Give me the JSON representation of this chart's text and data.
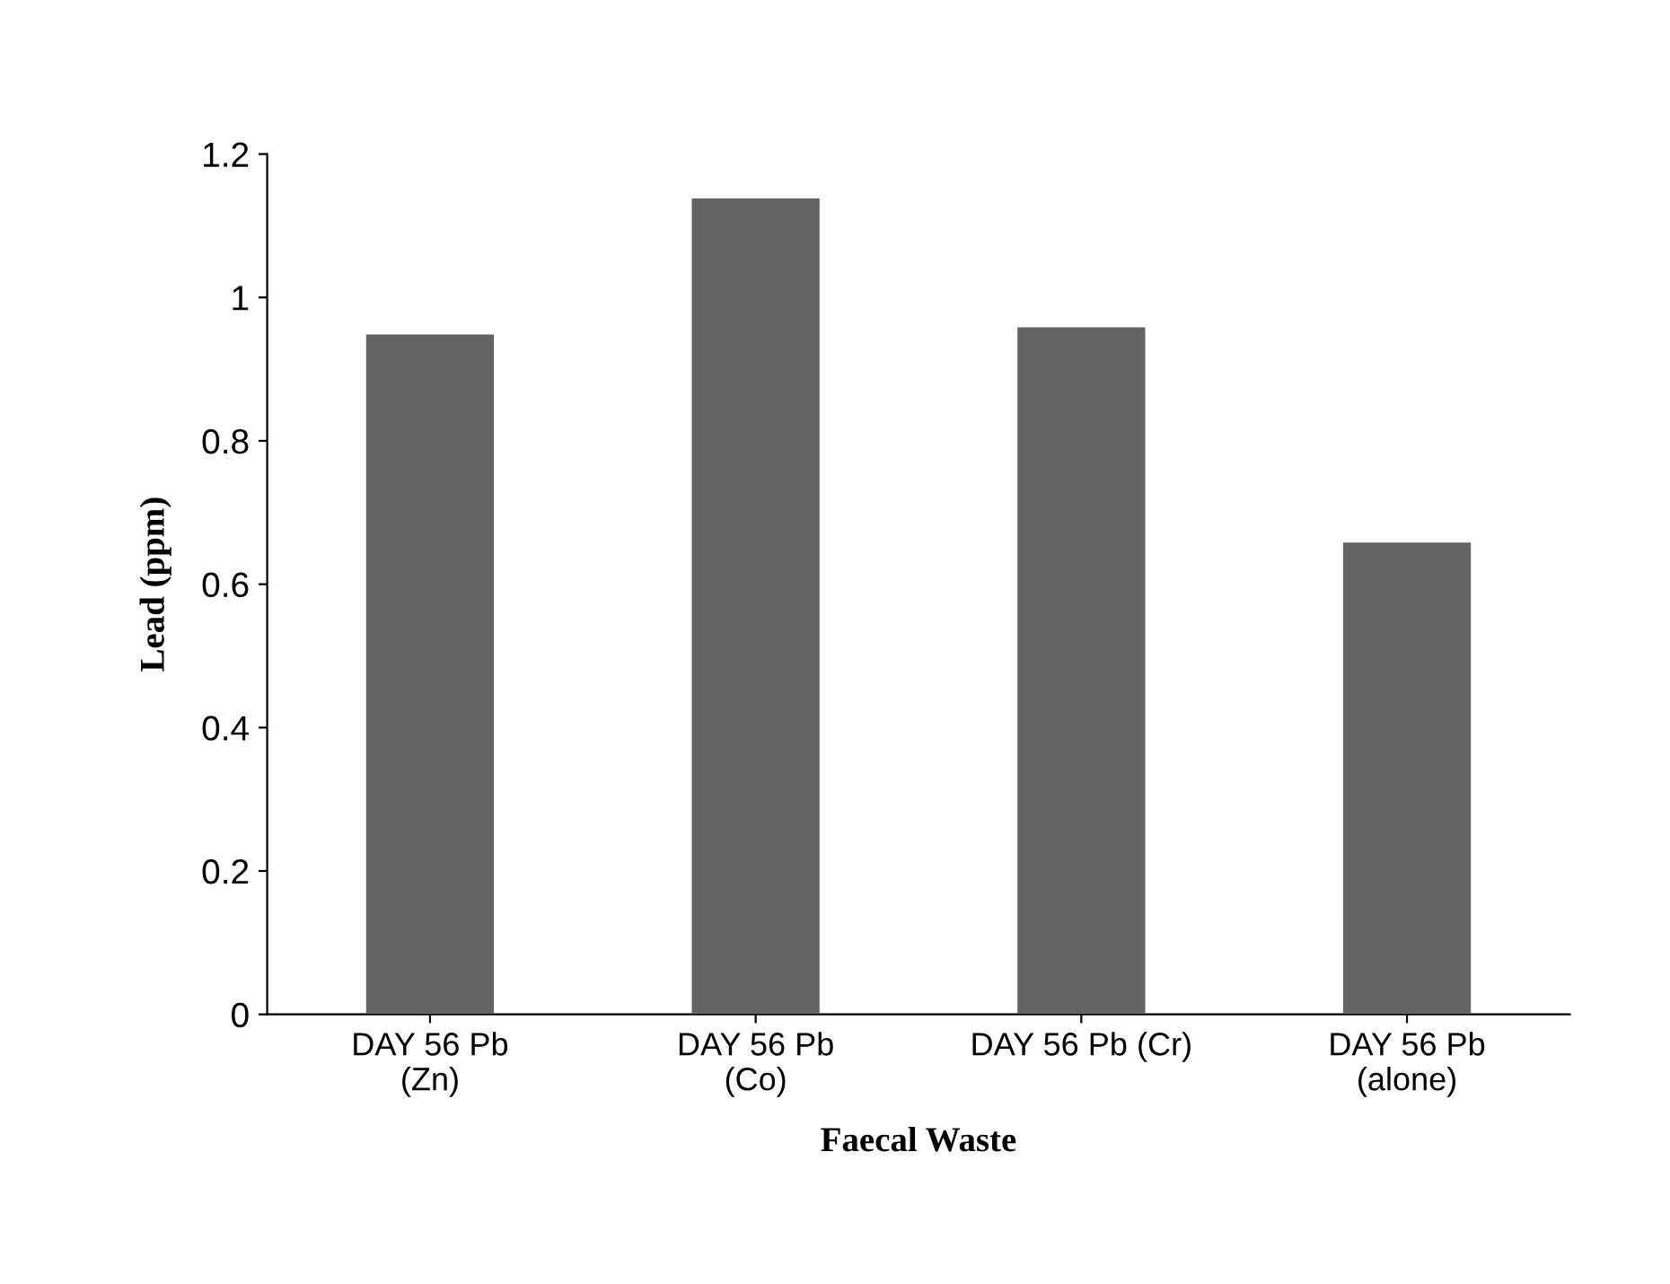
{
  "chart_data": {
    "type": "bar",
    "xlabel": "Faecal Waste",
    "ylabel": "Lead (ppm)",
    "categories": [
      "DAY 56 Pb\n(Zn)",
      "DAY 56 Pb\n(Co)",
      "DAY 56 Pb (Cr)",
      "DAY 56 Pb\n(alone)"
    ],
    "values": [
      0.95,
      1.14,
      0.96,
      0.66
    ],
    "color": "#636363",
    "ylim": [
      0,
      1.2
    ],
    "yticks": [
      0,
      0.2,
      0.4,
      0.6,
      0.8,
      1,
      1.2
    ],
    "grid": false,
    "legend": false
  }
}
